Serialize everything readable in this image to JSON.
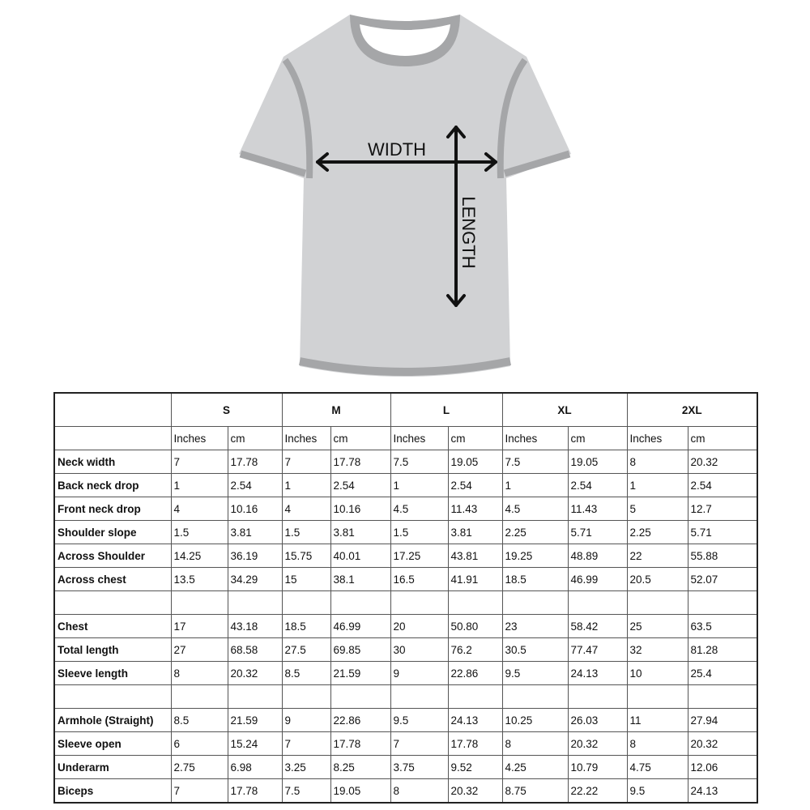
{
  "shirt": {
    "width_label": "WIDTH",
    "length_label": "LENGTH"
  },
  "table": {
    "sizes": [
      "S",
      "M",
      "L",
      "XL",
      "2XL"
    ],
    "units": [
      "Inches",
      "cm"
    ],
    "groups": [
      [
        {
          "label": "Neck width",
          "values": [
            "7",
            "17.78",
            "7",
            "17.78",
            "7.5",
            "19.05",
            "7.5",
            "19.05",
            "8",
            "20.32"
          ]
        },
        {
          "label": "Back neck drop",
          "values": [
            "1",
            "2.54",
            "1",
            "2.54",
            "1",
            "2.54",
            "1",
            "2.54",
            "1",
            "2.54"
          ]
        },
        {
          "label": "Front neck drop",
          "values": [
            "4",
            "10.16",
            "4",
            "10.16",
            "4.5",
            "11.43",
            "4.5",
            "11.43",
            "5",
            "12.7"
          ]
        },
        {
          "label": "Shoulder slope",
          "values": [
            "1.5",
            "3.81",
            "1.5",
            "3.81",
            "1.5",
            "3.81",
            "2.25",
            "5.71",
            "2.25",
            "5.71"
          ]
        },
        {
          "label": "Across Shoulder",
          "values": [
            "14.25",
            "36.19",
            "15.75",
            "40.01",
            "17.25",
            "43.81",
            "19.25",
            "48.89",
            "22",
            "55.88"
          ]
        },
        {
          "label": "Across chest",
          "values": [
            "13.5",
            "34.29",
            "15",
            "38.1",
            "16.5",
            "41.91",
            "18.5",
            "46.99",
            "20.5",
            "52.07"
          ]
        }
      ],
      [
        {
          "label": "Chest",
          "values": [
            "17",
            "43.18",
            "18.5",
            "46.99",
            "20",
            "50.80",
            "23",
            "58.42",
            "25",
            "63.5"
          ]
        },
        {
          "label": "Total length",
          "values": [
            "27",
            "68.58",
            "27.5",
            "69.85",
            "30",
            "76.2",
            "30.5",
            "77.47",
            "32",
            "81.28"
          ]
        },
        {
          "label": "Sleeve length",
          "values": [
            "8",
            "20.32",
            "8.5",
            "21.59",
            "9",
            "22.86",
            "9.5",
            "24.13",
            "10",
            "25.4"
          ]
        }
      ],
      [
        {
          "label": "Armhole (Straight)",
          "values": [
            "8.5",
            "21.59",
            "9",
            "22.86",
            "9.5",
            "24.13",
            "10.25",
            "26.03",
            "11",
            "27.94"
          ]
        },
        {
          "label": "Sleeve open",
          "values": [
            "6",
            "15.24",
            "7",
            "17.78",
            "7",
            "17.78",
            "8",
            "20.32",
            "8",
            "20.32"
          ]
        },
        {
          "label": "Underarm",
          "values": [
            "2.75",
            "6.98",
            "3.25",
            "8.25",
            "3.75",
            "9.52",
            "4.25",
            "10.79",
            "4.75",
            "12.06"
          ]
        },
        {
          "label": "Biceps",
          "values": [
            "7",
            "17.78",
            "7.5",
            "19.05",
            "8",
            "20.32",
            "8.75",
            "22.22",
            "9.5",
            "24.13"
          ]
        }
      ]
    ]
  }
}
